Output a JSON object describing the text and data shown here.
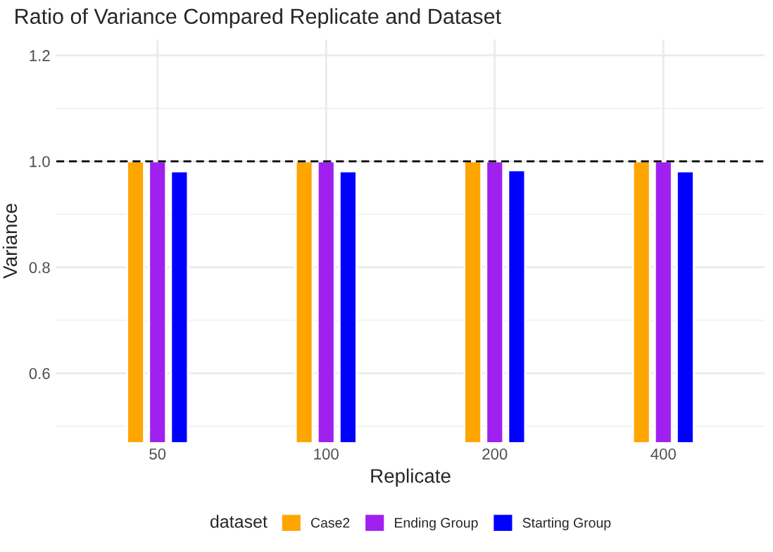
{
  "chart_data": {
    "type": "bar",
    "title": "Ratio of Variance Compared Replicate and Dataset",
    "xlabel": "Replicate",
    "ylabel": "Variance",
    "legend_title": "dataset",
    "categories": [
      "50",
      "100",
      "200",
      "400"
    ],
    "series": [
      {
        "name": "Case2",
        "color": "#ffa500",
        "values": [
          1.0,
          1.0,
          1.0,
          1.0
        ]
      },
      {
        "name": "Ending Group",
        "color": "#a020f0",
        "values": [
          1.0,
          1.0,
          1.0,
          1.0
        ]
      },
      {
        "name": "Starting Group",
        "color": "#0000ff",
        "values": [
          0.981,
          0.981,
          0.983,
          0.981
        ]
      }
    ],
    "ylim": [
      0.47,
      1.23
    ],
    "yticks": [
      {
        "value": 0.5,
        "label": null
      },
      0.6,
      {
        "value": 0.7,
        "label": null
      },
      0.8,
      {
        "value": 0.9,
        "label": null
      },
      {
        "value": 1.0,
        "label": "1.0"
      },
      {
        "value": 1.1,
        "label": null
      },
      1.2
    ],
    "ref_lines": [
      {
        "axis": "y",
        "value": 1.0,
        "label": null,
        "color": "#000000",
        "line_style": "dashed"
      }
    ],
    "grid": true,
    "legend": "bottom"
  }
}
